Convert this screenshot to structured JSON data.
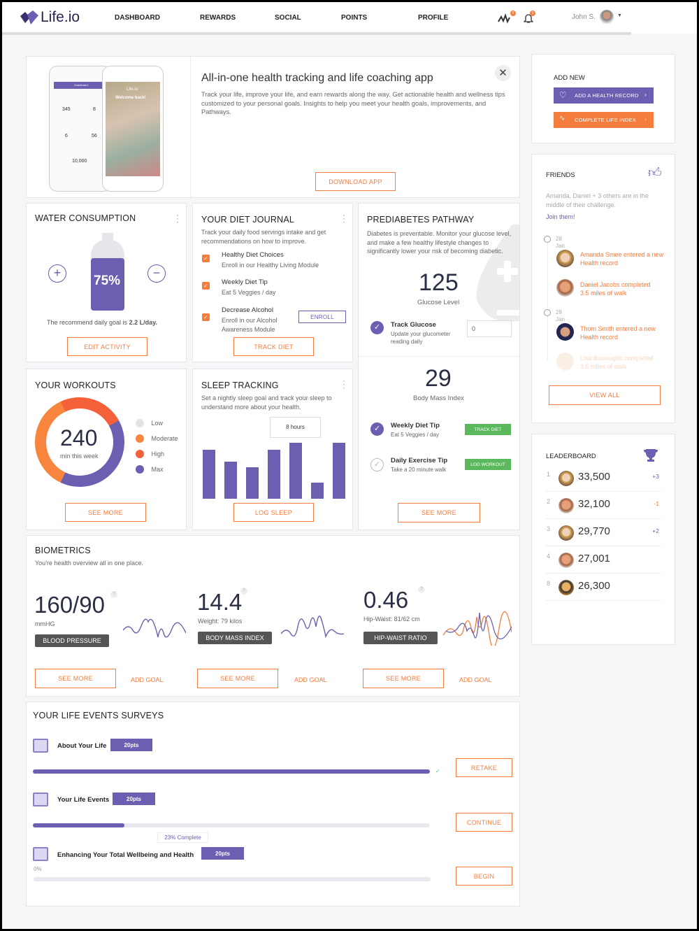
{
  "header": {
    "logo": "Life.io",
    "nav": [
      "DASHBOARD",
      "REWARDS",
      "SOCIAL",
      "POINTS",
      "PROFILE"
    ],
    "activity_badge": "0",
    "notification_badge": "0",
    "user": "John S.",
    "icons": [
      "activity-icon",
      "bell-icon",
      "chevron-down-icon"
    ]
  },
  "hero": {
    "title": "All-in-one health tracking and life coaching app",
    "text": "Track your life, improve your life, and earn rewards along the way. Get actionable health and wellness tips customized to your personal goals. Insights to help you meet your health goals, improvements, and Pathways.",
    "button": "DOWNLOAD APP",
    "phone_left": {
      "header": "Dashboard",
      "stats": [
        "345",
        "8",
        "6",
        "56",
        "10,000"
      ]
    },
    "phone_right": {
      "title": "Life.io",
      "welcome": "Welcome back!"
    }
  },
  "water": {
    "title": "WATER CONSUMPTION",
    "percent": "75%",
    "fill_fraction": 0.75,
    "goal_prefix": "The recommend daily goal is ",
    "goal_value": "2.2 L/day.",
    "button": "EDIT ACTIVITY"
  },
  "diet": {
    "title": "YOUR DIET JOURNAL",
    "desc": "Track your daily food servings intake and get recommendations on how to improve.",
    "items": [
      {
        "title": "Healthy Diet Choices",
        "sub": "Enroll in our Healthy Living Module"
      },
      {
        "title": "Weekly Diet Tip",
        "sub": "Eat 5 Veggies / day"
      },
      {
        "title": "Decrease Alcohol",
        "sub": "Enroll in our Alcohol Awareness Module"
      }
    ],
    "enroll": "ENROLL",
    "button": "TRACK DIET"
  },
  "prediabetes": {
    "title": "PREDIABETES PATHWAY",
    "desc": "Diabetes is preventable. Monitor your glucose level, and make a few healthy lifestyle changes to significantly lower your risk of becoming diabetic.",
    "glucose": "125",
    "glucose_label": "Glucose Level",
    "track_title": "Track Glucose",
    "track_sub": "Update your glucometer reading daily",
    "track_value": "0",
    "bmi": "29",
    "bmi_label": "Body Mass Index",
    "tip1_title": "Weekly Diet Tip",
    "tip1_sub": "Eat 5 Veggies / day",
    "tip1_btn": "TRACK DIET",
    "tip2_title": "Daily Exercise Tip",
    "tip2_sub": "Take a 20 minute walk",
    "tip2_btn": "LOG WORKOUT",
    "button": "SEE MORE"
  },
  "workouts": {
    "title": "YOUR WORKOUTS",
    "value": "240",
    "unit": "min this week",
    "legend": [
      {
        "label": "Low",
        "color": "#e4e4e8",
        "share": 0
      },
      {
        "label": "Moderate",
        "color": "#f7853e",
        "share": 0.36
      },
      {
        "label": "High",
        "color": "#f4603a",
        "share": 0.24
      },
      {
        "label": "Max",
        "color": "#6a5fb0",
        "share": 0.4
      }
    ],
    "button": "SEE MORE"
  },
  "sleep": {
    "title": "SLEEP TRACKING",
    "desc": "Set a nightly sleep goal and track your sleep to understand more about your health.",
    "tooltip": "8 hours",
    "hours": [
      7,
      5.3,
      4.5,
      7,
      8,
      2.3,
      8
    ],
    "button": "LOG SLEEP"
  },
  "biometrics": {
    "title": "BIOMETRICS",
    "desc": "You're health overview all in one place.",
    "items": [
      {
        "value": "160/90",
        "sub": "mmHG",
        "badge": "BLOOD PRESSURE"
      },
      {
        "value": "14.4",
        "sub": "Weight: 79 kilos",
        "badge": "BODY MASS INDEX"
      },
      {
        "value": "0.46",
        "sub": "Hip-Waist: 81/62 cm",
        "badge": "HIP-WAIST RATIO"
      }
    ],
    "see_more": "SEE MORE",
    "add_goal": "ADD GOAL"
  },
  "surveys": {
    "title": "YOUR LIFE EVENTS SURVEYS",
    "items": [
      {
        "name": "About Your Life",
        "points": "20pts",
        "progress": 1.0,
        "button": "RETAKE"
      },
      {
        "name": "Your Life Events",
        "points": "20pts",
        "progress": 0.23,
        "tooltip": "23% Complete",
        "button": "CONTINUE"
      },
      {
        "name": "Enhancing Your Total Wellbeing and Health",
        "points": "20pts",
        "progress": 0,
        "percent_label": "0%",
        "button": "BEGIN"
      }
    ]
  },
  "add_new": {
    "title": "ADD NEW",
    "btn1": "ADD A HEALTH RECORD",
    "btn2": "COMPLETE LIFE INDEX"
  },
  "friends": {
    "title": "FRIENDS",
    "desc": "Amanda, Daniel + 3 others are in the middle of their challenge.",
    "join": "Join them!",
    "d1": "28",
    "m1": "Jan",
    "d2": "29",
    "m2": "Jan",
    "events": [
      "Amanda Smee entered a new Health record",
      "Daniel Jacobs completed 3.5 miles of walk",
      "Thom Smith entered a new Health record",
      "Lisa Burroughs completed 3.5 miles of walk"
    ],
    "button": "VIEW ALL"
  },
  "leaderboard": {
    "title": "LEADERBOARD",
    "rows": [
      {
        "rank": "1",
        "score": "33,500",
        "change": "+3"
      },
      {
        "rank": "2",
        "score": "32,100",
        "change": "-1"
      },
      {
        "rank": "3",
        "score": "29,770",
        "change": "+2"
      },
      {
        "rank": "4",
        "score": "27,001",
        "change": ""
      },
      {
        "rank": "8",
        "score": "26,300",
        "change": ""
      }
    ]
  },
  "colors": {
    "accent": "#f47c3c",
    "primary": "#6a5fb0",
    "success": "#5cb85c"
  }
}
